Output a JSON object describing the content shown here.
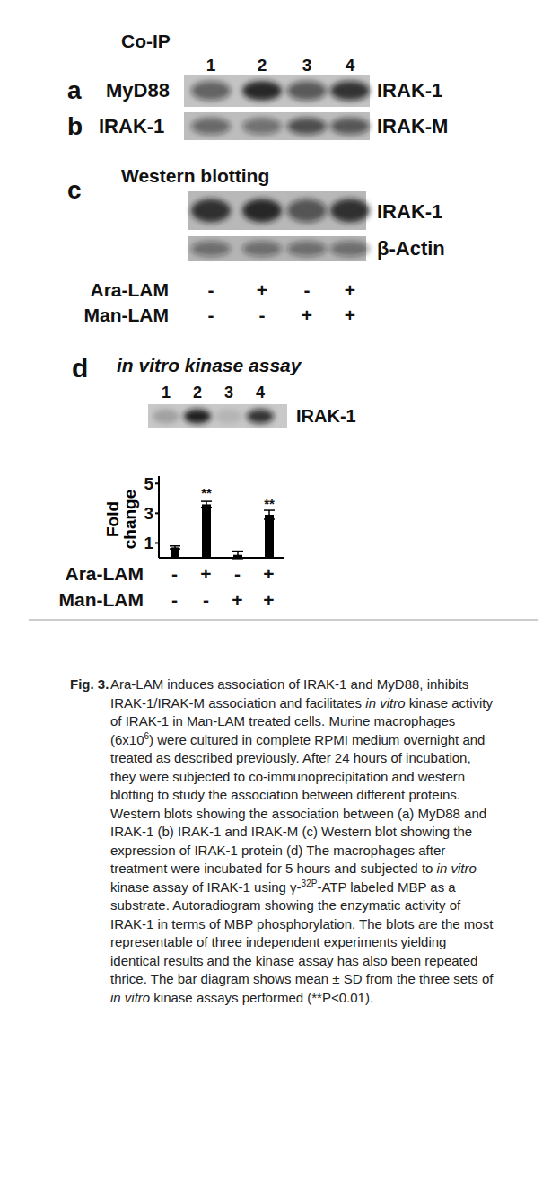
{
  "coip": {
    "heading": "Co-IP",
    "lane_numbers": [
      "1",
      "2",
      "3",
      "4"
    ],
    "blots": [
      {
        "letter": "a",
        "left": "MyD88",
        "right": "IRAK-1",
        "bands": [
          0.55,
          0.9,
          0.6,
          0.8
        ]
      },
      {
        "letter": "b",
        "left": "IRAK-1",
        "right": "IRAK-M",
        "bands": [
          0.5,
          0.45,
          0.65,
          0.6
        ]
      }
    ]
  },
  "western": {
    "letter": "c",
    "heading": "Western blotting",
    "blots": [
      {
        "right": "IRAK-1",
        "bands": [
          0.85,
          0.9,
          0.6,
          0.85
        ]
      },
      {
        "right": "β-Actin",
        "bands": [
          0.45,
          0.45,
          0.45,
          0.45
        ]
      }
    ]
  },
  "treatments": [
    {
      "name": "Ara-LAM",
      "signs": [
        "-",
        "+",
        "-",
        "+"
      ]
    },
    {
      "name": "Man-LAM",
      "signs": [
        "-",
        "-",
        "+",
        "+"
      ]
    }
  ],
  "kinase": {
    "letter": "d",
    "heading": "in vitro kinase assay",
    "lane_numbers": [
      "1",
      "2",
      "3",
      "4"
    ],
    "blot": {
      "right": "IRAK-1",
      "bands": [
        0.2,
        0.95,
        0.1,
        0.8
      ]
    }
  },
  "chart_data": {
    "type": "bar",
    "ylabel": "Fold change",
    "categories": [
      null,
      null,
      null,
      null
    ],
    "values": [
      0.7,
      3.6,
      0.2,
      2.9
    ],
    "error": [
      0.1,
      0.2,
      0.25,
      0.3
    ],
    "significance": [
      null,
      "**",
      null,
      "**"
    ],
    "color": "#000000",
    "ylim": [
      0,
      5.5
    ],
    "yticks": [
      1,
      3,
      5
    ],
    "tick_labels": "y"
  },
  "caption": {
    "label": "Fig. 3.",
    "segments": [
      {
        "text": "Ara-LAM induces association of IRAK-1 and MyD88, inhibits IRAK-1/IRAK-M association and facilitates "
      },
      {
        "text": "in vitro",
        "italic": true
      },
      {
        "text": " kinase activity of IRAK-1 in Man-LAM treated cells. Murine macrophages (6x10"
      },
      {
        "text": "6",
        "sup": true
      },
      {
        "text": ") were cultured in complete RPMI medium overnight and treated as described previously. After 24 hours of incubation, they were subjected to co-immunoprecipitation and western blotting to study the association between different proteins. Western blots showing the association between (a) MyD88 and IRAK-1 (b) IRAK-1 and IRAK-M (c) Western blot showing the expression of IRAK-1 protein (d) The macrophages after treatment were incubated for 5 hours and subjected to "
      },
      {
        "text": "in vitro",
        "italic": true
      },
      {
        "text": " kinase assay of IRAK-1 using γ-"
      },
      {
        "text": "32P",
        "sup": true
      },
      {
        "text": "-ATP labeled MBP as a substrate. Autoradiogram showing the enzymatic activity of IRAK-1 in terms of MBP phosphorylation. The blots are the most representable of three independent experiments yielding identical results and the kinase assay has also been repeated thrice. The bar diagram shows mean ± SD from the three sets of "
      },
      {
        "text": "in vitro",
        "italic": true
      },
      {
        "text": " kinase assays performed (**P<0.01)."
      }
    ]
  }
}
